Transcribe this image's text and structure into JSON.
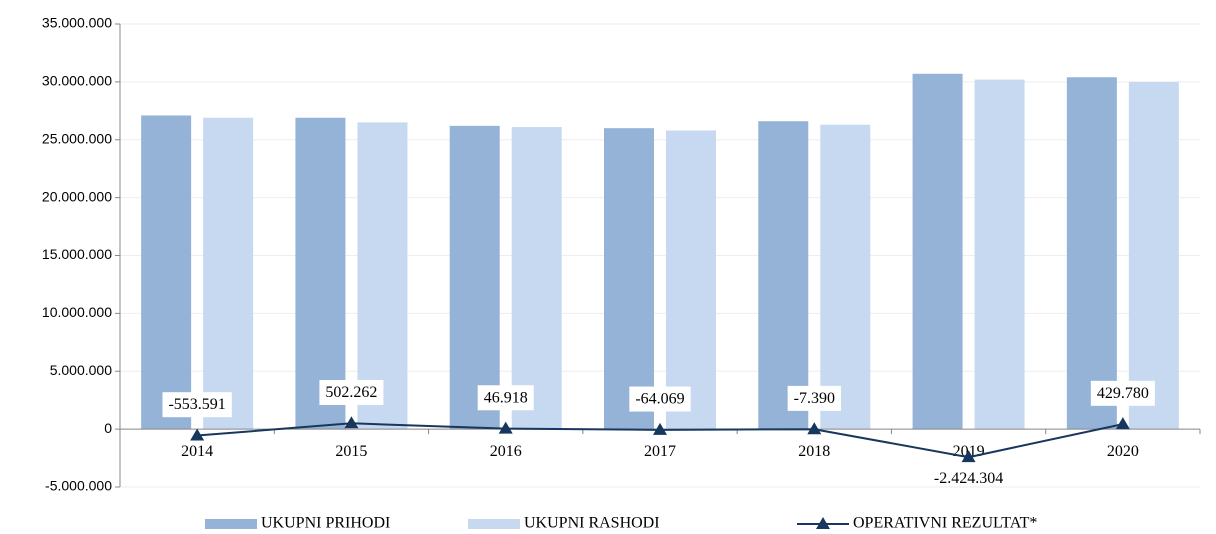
{
  "chart_data": {
    "type": "combo",
    "categories": [
      "2014",
      "2015",
      "2016",
      "2017",
      "2018",
      "2019",
      "2020"
    ],
    "series": [
      {
        "name": "UKUPNI PRIHODI",
        "type": "bar",
        "color": "#95b3d7",
        "values": [
          27100000,
          26900000,
          26200000,
          26000000,
          26600000,
          30700000,
          30400000
        ]
      },
      {
        "name": "UKUPNI RASHODI",
        "type": "bar",
        "color": "#c6d9f1",
        "values": [
          26900000,
          26500000,
          26100000,
          25800000,
          26300000,
          30200000,
          30000000
        ]
      },
      {
        "name": "OPERATIVNI REZULTAT*",
        "type": "line",
        "color": "#17375e",
        "values": [
          -553591,
          502262,
          46918,
          -64069,
          -7390,
          -2424304,
          429780
        ],
        "value_labels": [
          "-553.591",
          "502.262",
          "46.918",
          "-64.069",
          "-7.390",
          "-2.424.304",
          "429.780"
        ]
      }
    ],
    "ylim": [
      -5000000,
      35000000
    ],
    "yticks": [
      {
        "value": -5000000,
        "label": "-5.000.000"
      },
      0,
      {
        "value": 5000000,
        "label": "5.000.000"
      },
      {
        "value": 10000000,
        "label": "10.000.000"
      },
      {
        "value": 15000000,
        "label": "15.000.000"
      },
      {
        "value": 20000000,
        "label": "20.000.000"
      },
      {
        "value": 25000000,
        "label": "25.000.000"
      },
      {
        "value": 30000000,
        "label": "30.000.000"
      },
      {
        "value": 35000000,
        "label": "35.000.000"
      }
    ],
    "grid": true,
    "legend": "bottom"
  }
}
